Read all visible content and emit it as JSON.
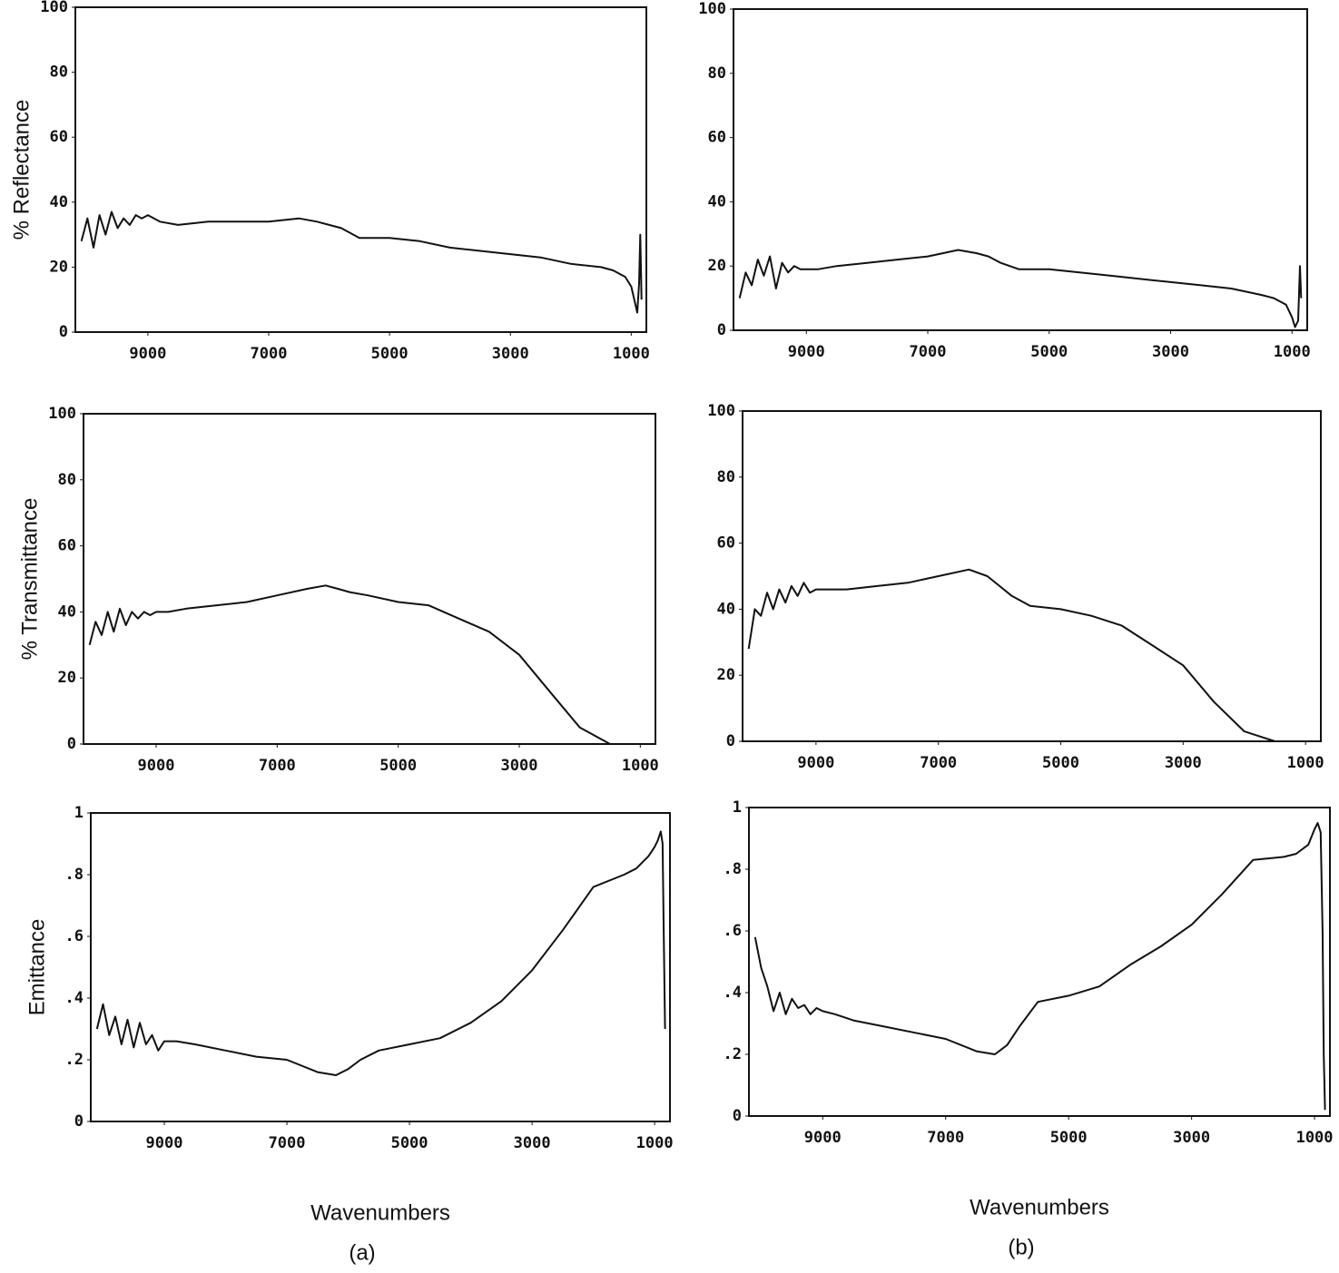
{
  "chart_data": [
    {
      "type": "line",
      "y_label": "% Reflectance",
      "x": [
        10100,
        10000,
        9900,
        9800,
        9700,
        9600,
        9500,
        9400,
        9300,
        9200,
        9100,
        9000,
        8800,
        8500,
        8000,
        7500,
        7000,
        6500,
        6200,
        6000,
        5800,
        5500,
        5000,
        4500,
        4000,
        3500,
        3000,
        2500,
        2000,
        1500,
        1300,
        1100,
        1000,
        950,
        900,
        870,
        850,
        830
      ],
      "values": [
        28,
        35,
        26,
        36,
        30,
        37,
        32,
        35,
        33,
        36,
        35,
        36,
        34,
        33,
        34,
        34,
        34,
        35,
        34,
        33,
        32,
        29,
        29,
        28,
        26,
        25,
        24,
        23,
        21,
        20,
        19,
        17,
        14,
        10,
        6,
        15,
        30,
        10
      ],
      "color": "#111111",
      "xlim": [
        10200,
        750
      ],
      "xticks": [
        9000,
        7000,
        5000,
        3000,
        1000
      ],
      "ylim": [
        0,
        100
      ],
      "yticks": [
        0,
        20,
        40,
        60,
        80,
        100
      ]
    },
    {
      "type": "line",
      "x": [
        10100,
        10000,
        9900,
        9800,
        9700,
        9600,
        9500,
        9400,
        9300,
        9200,
        9100,
        9000,
        8800,
        8500,
        8000,
        7500,
        7000,
        6500,
        6200,
        6000,
        5800,
        5500,
        5000,
        4500,
        4000,
        3500,
        3000,
        2500,
        2000,
        1500,
        1300,
        1100,
        1000,
        950,
        900,
        870,
        850,
        830
      ],
      "values": [
        10,
        18,
        14,
        22,
        17,
        23,
        13,
        21,
        18,
        20,
        19,
        19,
        19,
        20,
        21,
        22,
        23,
        25,
        24,
        23,
        21,
        19,
        19,
        18,
        17,
        16,
        15,
        14,
        13,
        11,
        10,
        8,
        4,
        1,
        3,
        20,
        10,
        null
      ],
      "color": "#111111",
      "xlim": [
        10200,
        750
      ],
      "xticks": [
        9000,
        7000,
        5000,
        3000,
        1000
      ],
      "ylim": [
        0,
        100
      ],
      "yticks": [
        0,
        20,
        40,
        60,
        80,
        100
      ]
    },
    {
      "type": "line",
      "y_label": "% Transmittance",
      "x": [
        10100,
        10000,
        9900,
        9800,
        9700,
        9600,
        9500,
        9400,
        9300,
        9200,
        9100,
        9000,
        8800,
        8500,
        8000,
        7500,
        7000,
        6500,
        6200,
        6000,
        5800,
        5500,
        5000,
        4500,
        4000,
        3500,
        3000,
        2500,
        2000,
        1500,
        1300,
        1100,
        1000,
        950,
        900,
        870,
        850,
        830
      ],
      "values": [
        30,
        37,
        33,
        40,
        34,
        41,
        36,
        40,
        38,
        40,
        39,
        40,
        40,
        41,
        42,
        43,
        45,
        47,
        48,
        47,
        46,
        45,
        43,
        42,
        38,
        34,
        27,
        16,
        5,
        0,
        0,
        0,
        null,
        null,
        null,
        null,
        null,
        null
      ],
      "color": "#111111",
      "xlim": [
        10200,
        750
      ],
      "xticks": [
        9000,
        7000,
        5000,
        3000,
        1000
      ],
      "ylim": [
        0,
        100
      ],
      "yticks": [
        0,
        20,
        40,
        60,
        80,
        100
      ]
    },
    {
      "type": "line",
      "x": [
        10100,
        10000,
        9900,
        9800,
        9700,
        9600,
        9500,
        9400,
        9300,
        9200,
        9100,
        9000,
        8800,
        8500,
        8000,
        7500,
        7000,
        6500,
        6200,
        6000,
        5800,
        5500,
        5000,
        4500,
        4000,
        3500,
        3000,
        2500,
        2000,
        1500,
        1300,
        1100,
        1000,
        950,
        900,
        870,
        850,
        830
      ],
      "values": [
        28,
        40,
        38,
        45,
        40,
        46,
        42,
        47,
        44,
        48,
        45,
        46,
        46,
        46,
        47,
        48,
        50,
        52,
        50,
        47,
        44,
        41,
        40,
        38,
        35,
        29,
        23,
        12,
        3,
        0,
        null,
        null,
        null,
        null,
        null,
        null,
        null,
        null
      ],
      "color": "#111111",
      "xlim": [
        10200,
        750
      ],
      "xticks": [
        9000,
        7000,
        5000,
        3000,
        1000
      ],
      "ylim": [
        0,
        100
      ],
      "yticks": [
        0,
        20,
        40,
        60,
        80,
        100
      ]
    },
    {
      "type": "line",
      "y_label": "Emittance",
      "x_label": "Wavenumbers",
      "caption": "(a)",
      "x": [
        10100,
        10000,
        9900,
        9800,
        9700,
        9600,
        9500,
        9400,
        9300,
        9200,
        9100,
        9000,
        8800,
        8500,
        8000,
        7500,
        7000,
        6500,
        6200,
        6000,
        5800,
        5500,
        5000,
        4500,
        4000,
        3500,
        3000,
        2500,
        2000,
        1500,
        1300,
        1100,
        1000,
        950,
        900,
        870,
        850,
        830
      ],
      "values": [
        0.3,
        0.38,
        0.28,
        0.34,
        0.25,
        0.33,
        0.24,
        0.32,
        0.25,
        0.28,
        0.23,
        0.26,
        0.26,
        0.25,
        0.23,
        0.21,
        0.2,
        0.16,
        0.15,
        0.17,
        0.2,
        0.23,
        0.25,
        0.27,
        0.32,
        0.39,
        0.49,
        0.62,
        0.76,
        0.8,
        0.82,
        0.86,
        0.89,
        0.91,
        0.94,
        0.9,
        0.6,
        0.3
      ],
      "color": "#111111",
      "xlim": [
        10200,
        750
      ],
      "xticks": [
        9000,
        7000,
        5000,
        3000,
        1000
      ],
      "ylim": [
        0,
        1
      ],
      "yticks": [
        0,
        {
          "value": 0.2,
          "label": ".2"
        },
        {
          "value": 0.4,
          "label": ".4"
        },
        {
          "value": 0.6,
          "label": ".6"
        },
        {
          "value": 0.8,
          "label": ".8"
        },
        1
      ]
    },
    {
      "type": "line",
      "x_label": "Wavenumbers",
      "caption": "(b)",
      "x": [
        10100,
        10000,
        9900,
        9800,
        9700,
        9600,
        9500,
        9400,
        9300,
        9200,
        9100,
        9000,
        8800,
        8500,
        8000,
        7500,
        7000,
        6500,
        6200,
        6000,
        5800,
        5500,
        5000,
        4500,
        4000,
        3500,
        3000,
        2500,
        2000,
        1500,
        1300,
        1100,
        1000,
        950,
        900,
        870,
        850,
        830
      ],
      "values": [
        0.58,
        0.48,
        0.42,
        0.34,
        0.4,
        0.33,
        0.38,
        0.35,
        0.36,
        0.33,
        0.35,
        0.34,
        0.33,
        0.31,
        0.29,
        0.27,
        0.25,
        0.21,
        0.2,
        0.23,
        0.29,
        0.37,
        0.39,
        0.42,
        0.49,
        0.55,
        0.62,
        0.72,
        0.83,
        0.84,
        0.85,
        0.88,
        0.93,
        0.95,
        0.92,
        0.6,
        0.2,
        0.02
      ],
      "color": "#111111",
      "xlim": [
        10200,
        750
      ],
      "xticks": [
        9000,
        7000,
        5000,
        3000,
        1000
      ],
      "ylim": [
        0,
        1
      ],
      "yticks": [
        0,
        {
          "value": 0.2,
          "label": ".2"
        },
        {
          "value": 0.4,
          "label": ".4"
        },
        {
          "value": 0.6,
          "label": ".6"
        },
        {
          "value": 0.8,
          "label": ".8"
        },
        1
      ]
    }
  ]
}
